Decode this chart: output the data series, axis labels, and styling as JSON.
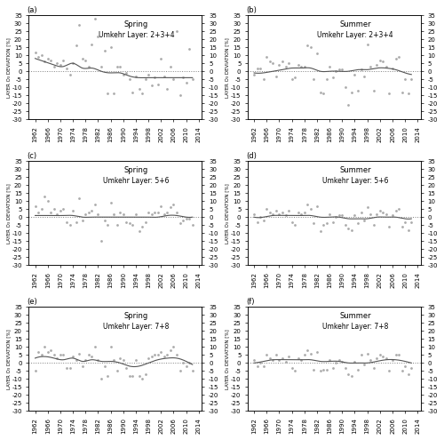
{
  "panels": [
    {
      "label": "(a)",
      "season": "Spring",
      "layer": "Umkehr Layer: 2+3+4",
      "ylim": [
        -30,
        35
      ],
      "yticks": [
        -30,
        -25,
        -20,
        -15,
        -10,
        -5,
        0,
        5,
        10,
        15,
        20,
        25,
        30,
        35
      ],
      "scatter_x": [
        1962,
        1963,
        1964,
        1965,
        1966,
        1967,
        1968,
        1969,
        1970,
        1971,
        1972,
        1973,
        1974,
        1975,
        1976,
        1977,
        1978,
        1979,
        1980,
        1981,
        1982,
        1983,
        1984,
        1985,
        1986,
        1987,
        1988,
        1989,
        1990,
        1991,
        1992,
        1993,
        1994,
        1995,
        1996,
        1997,
        1998,
        1999,
        2000,
        2001,
        2002,
        2003,
        2004,
        2005,
        2006,
        2007,
        2008,
        2009,
        2010,
        2011,
        2012
      ],
      "scatter_y": [
        12,
        9,
        10,
        6,
        8,
        7,
        3,
        5,
        4,
        7,
        2,
        -2,
        5,
        16,
        29,
        8,
        7,
        3,
        17,
        33,
        22,
        3,
        13,
        -14,
        15,
        -14,
        3,
        3,
        -2,
        -1,
        -5,
        -13,
        -3,
        -11,
        -14,
        -5,
        -2,
        -9,
        -4,
        -8,
        8,
        -3,
        -11,
        3,
        -5,
        25,
        -15,
        -4,
        -7,
        14,
        -5
      ],
      "smooth_x": [
        1962,
        1965,
        1968,
        1971,
        1974,
        1977,
        1980,
        1983,
        1986,
        1989,
        1992,
        1995,
        1998,
        2001,
        2004,
        2007,
        2010,
        2012
      ],
      "smooth_y": [
        8,
        6,
        4,
        3,
        5,
        2,
        2,
        0,
        -1,
        -1,
        -3,
        -4,
        -4,
        -4,
        -4,
        -4,
        -4,
        -4
      ]
    },
    {
      "label": "(b)",
      "season": "Summer",
      "layer": "Umkehr Layer: 2+3+4",
      "ylim": [
        -30,
        35
      ],
      "yticks": [
        -30,
        -25,
        -20,
        -15,
        -10,
        -5,
        0,
        5,
        10,
        15,
        20,
        25,
        30,
        35
      ],
      "scatter_x": [
        1962,
        1963,
        1964,
        1965,
        1966,
        1967,
        1968,
        1969,
        1970,
        1971,
        1972,
        1973,
        1974,
        1975,
        1976,
        1977,
        1978,
        1979,
        1980,
        1981,
        1982,
        1983,
        1984,
        1985,
        1986,
        1987,
        1988,
        1989,
        1990,
        1991,
        1992,
        1993,
        1994,
        1995,
        1996,
        1997,
        1998,
        1999,
        2000,
        2001,
        2002,
        2003,
        2004,
        2005,
        2006,
        2007,
        2008,
        2009,
        2010,
        2011,
        2012
      ],
      "scatter_y": [
        -2,
        2,
        2,
        -5,
        9,
        6,
        5,
        -3,
        4,
        6,
        3,
        5,
        -5,
        -4,
        4,
        3,
        3,
        16,
        15,
        -5,
        11,
        -13,
        -14,
        -5,
        3,
        -4,
        0,
        1,
        1,
        -10,
        -21,
        -13,
        -2,
        -12,
        1,
        -3,
        17,
        3,
        -12,
        4,
        7,
        6,
        3,
        -14,
        2,
        8,
        9,
        -13,
        -5,
        -14,
        -5
      ],
      "smooth_x": [
        1962,
        1965,
        1968,
        1971,
        1974,
        1977,
        1980,
        1983,
        1986,
        1989,
        1992,
        1995,
        1998,
        2001,
        2004,
        2007,
        2010,
        2012
      ],
      "smooth_y": [
        -1,
        -1,
        0,
        1,
        2,
        2,
        2,
        0,
        0,
        0,
        0,
        1,
        1,
        2,
        2,
        1,
        -1,
        -2
      ]
    },
    {
      "label": "(c)",
      "season": "Spring",
      "layer": "Umkehr Layer: 5+6",
      "ylim": [
        -30,
        35
      ],
      "yticks": [
        -30,
        -25,
        -20,
        -15,
        -10,
        -5,
        0,
        5,
        10,
        15,
        20,
        25,
        30,
        35
      ],
      "scatter_x": [
        1962,
        1963,
        1964,
        1965,
        1966,
        1967,
        1968,
        1969,
        1970,
        1971,
        1972,
        1973,
        1974,
        1975,
        1976,
        1977,
        1978,
        1979,
        1980,
        1981,
        1982,
        1983,
        1984,
        1985,
        1986,
        1987,
        1988,
        1989,
        1990,
        1991,
        1992,
        1993,
        1994,
        1995,
        1996,
        1997,
        1998,
        1999,
        2000,
        2001,
        2002,
        2003,
        2004,
        2005,
        2006,
        2007,
        2008,
        2009,
        2010,
        2011,
        2012
      ],
      "scatter_y": [
        7,
        3,
        5,
        13,
        10,
        3,
        5,
        2,
        4,
        5,
        -3,
        -5,
        4,
        -3,
        12,
        -2,
        2,
        3,
        4,
        8,
        2,
        -15,
        -2,
        -5,
        9,
        2,
        -5,
        3,
        2,
        -3,
        -4,
        -5,
        2,
        -9,
        -6,
        -3,
        3,
        2,
        3,
        3,
        7,
        2,
        3,
        6,
        8,
        3,
        -4,
        -2,
        -1,
        -1,
        -5
      ],
      "smooth_x": [
        1962,
        1965,
        1968,
        1971,
        1974,
        1977,
        1980,
        1983,
        1986,
        1989,
        1992,
        1995,
        1998,
        2001,
        2004,
        2007,
        2010,
        2012
      ],
      "smooth_y": [
        1,
        1,
        1,
        1,
        1,
        0,
        0,
        0,
        0,
        0,
        0,
        0,
        0,
        0,
        1,
        1,
        0,
        0
      ]
    },
    {
      "label": "(d)",
      "season": "Summer",
      "layer": "Umkehr Layer: 5+6",
      "ylim": [
        -30,
        35
      ],
      "yticks": [
        -30,
        -25,
        -20,
        -15,
        -10,
        -5,
        0,
        5,
        10,
        15,
        20,
        25,
        30,
        35
      ],
      "scatter_x": [
        1962,
        1963,
        1964,
        1965,
        1966,
        1967,
        1968,
        1969,
        1970,
        1971,
        1972,
        1973,
        1974,
        1975,
        1976,
        1977,
        1978,
        1979,
        1980,
        1981,
        1982,
        1983,
        1984,
        1985,
        1986,
        1987,
        1988,
        1989,
        1990,
        1991,
        1992,
        1993,
        1994,
        1995,
        1996,
        1997,
        1998,
        1999,
        2000,
        2001,
        2002,
        2003,
        2004,
        2005,
        2006,
        2007,
        2008,
        2009,
        2010,
        2011,
        2012
      ],
      "scatter_y": [
        2,
        -3,
        0,
        -2,
        5,
        3,
        2,
        4,
        2,
        3,
        1,
        4,
        -3,
        -5,
        3,
        2,
        3,
        8,
        5,
        -4,
        7,
        -9,
        -5,
        -4,
        2,
        -3,
        0,
        1,
        1,
        -5,
        -7,
        -8,
        1,
        -4,
        3,
        -2,
        6,
        2,
        -5,
        2,
        4,
        3,
        2,
        -6,
        1,
        4,
        5,
        -6,
        -3,
        -8,
        -3
      ],
      "smooth_x": [
        1962,
        1965,
        1968,
        1971,
        1974,
        1977,
        1980,
        1983,
        1986,
        1989,
        1992,
        1995,
        1998,
        2001,
        2004,
        2007,
        2010,
        2012
      ],
      "smooth_y": [
        0,
        0,
        1,
        1,
        1,
        1,
        1,
        0,
        0,
        0,
        -1,
        -1,
        -1,
        0,
        0,
        0,
        -1,
        -1
      ]
    },
    {
      "label": "(e)",
      "season": "Spring",
      "layer": "Umkehr Layer: 7+8",
      "ylim": [
        -30,
        35
      ],
      "yticks": [
        -30,
        -25,
        -20,
        -15,
        -10,
        -5,
        0,
        5,
        10,
        15,
        20,
        25,
        30,
        35
      ],
      "scatter_x": [
        1962,
        1963,
        1964,
        1965,
        1966,
        1967,
        1968,
        1969,
        1970,
        1971,
        1972,
        1973,
        1974,
        1975,
        1976,
        1977,
        1978,
        1979,
        1980,
        1981,
        1982,
        1983,
        1984,
        1985,
        1986,
        1987,
        1988,
        1989,
        1990,
        1991,
        1992,
        1993,
        1994,
        1995,
        1996,
        1997,
        1998,
        1999,
        2000,
        2001,
        2002,
        2003,
        2004,
        2005,
        2006,
        2007,
        2008,
        2009,
        2010,
        2011,
        2012
      ],
      "scatter_y": [
        -5,
        7,
        5,
        10,
        7,
        8,
        5,
        3,
        5,
        5,
        -3,
        -3,
        4,
        2,
        6,
        -2,
        2,
        5,
        4,
        10,
        2,
        -10,
        -2,
        -8,
        10,
        2,
        -5,
        3,
        2,
        -3,
        -8,
        -8,
        2,
        -8,
        -10,
        -7,
        3,
        4,
        5,
        5,
        7,
        4,
        5,
        8,
        10,
        5,
        -5,
        0,
        -2,
        0,
        -5
      ],
      "smooth_x": [
        1962,
        1965,
        1968,
        1971,
        1974,
        1977,
        1980,
        1983,
        1986,
        1989,
        1992,
        1995,
        1998,
        2001,
        2004,
        2007,
        2010,
        2012
      ],
      "smooth_y": [
        3,
        4,
        3,
        2,
        3,
        1,
        2,
        1,
        1,
        0,
        -2,
        -2,
        0,
        2,
        3,
        3,
        1,
        -1
      ]
    },
    {
      "label": "(f)",
      "season": "Summer",
      "layer": "Umkehr Layer: 7+8",
      "ylim": [
        -30,
        35
      ],
      "yticks": [
        -30,
        -25,
        -20,
        -15,
        -10,
        -5,
        0,
        5,
        10,
        15,
        20,
        25,
        30,
        35
      ],
      "scatter_x": [
        1962,
        1963,
        1964,
        1965,
        1966,
        1967,
        1968,
        1969,
        1970,
        1971,
        1972,
        1973,
        1974,
        1975,
        1976,
        1977,
        1978,
        1979,
        1980,
        1981,
        1982,
        1983,
        1984,
        1985,
        1986,
        1987,
        1988,
        1989,
        1990,
        1991,
        1992,
        1993,
        1994,
        1995,
        1996,
        1997,
        1998,
        1999,
        2000,
        2001,
        2002,
        2003,
        2004,
        2005,
        2006,
        2007,
        2008,
        2009,
        2010,
        2011,
        2012
      ],
      "scatter_y": [
        2,
        -2,
        0,
        -2,
        5,
        3,
        2,
        5,
        2,
        3,
        1,
        4,
        -3,
        -5,
        3,
        2,
        5,
        8,
        6,
        -4,
        7,
        -5,
        -4,
        -4,
        2,
        -3,
        0,
        2,
        1,
        -3,
        -7,
        -8,
        1,
        -4,
        5,
        -1,
        6,
        2,
        -3,
        3,
        5,
        4,
        3,
        -5,
        2,
        5,
        5,
        -5,
        -2,
        -7,
        -3
      ],
      "smooth_x": [
        1962,
        1965,
        1968,
        1971,
        1974,
        1977,
        1980,
        1983,
        1986,
        1989,
        1992,
        1995,
        1998,
        2001,
        2004,
        2007,
        2010,
        2012
      ],
      "smooth_y": [
        0,
        1,
        2,
        2,
        2,
        2,
        2,
        1,
        1,
        1,
        0,
        0,
        0,
        1,
        2,
        2,
        1,
        0
      ]
    }
  ],
  "xticks": [
    1962,
    1966,
    1970,
    1974,
    1978,
    1982,
    1986,
    1990,
    1994,
    1998,
    2002,
    2006,
    2010,
    2014
  ],
  "scatter_color": "#aaaaaa",
  "line_color": "#555555",
  "marker_size": 4,
  "ylabel": "LAYER O₃ DEVIATION [%]",
  "bg_color": "#ffffff",
  "tick_fontsize": 5,
  "label_fontsize": 5.5,
  "title_fontsize": 6,
  "sublabel_fontsize": 5.5
}
